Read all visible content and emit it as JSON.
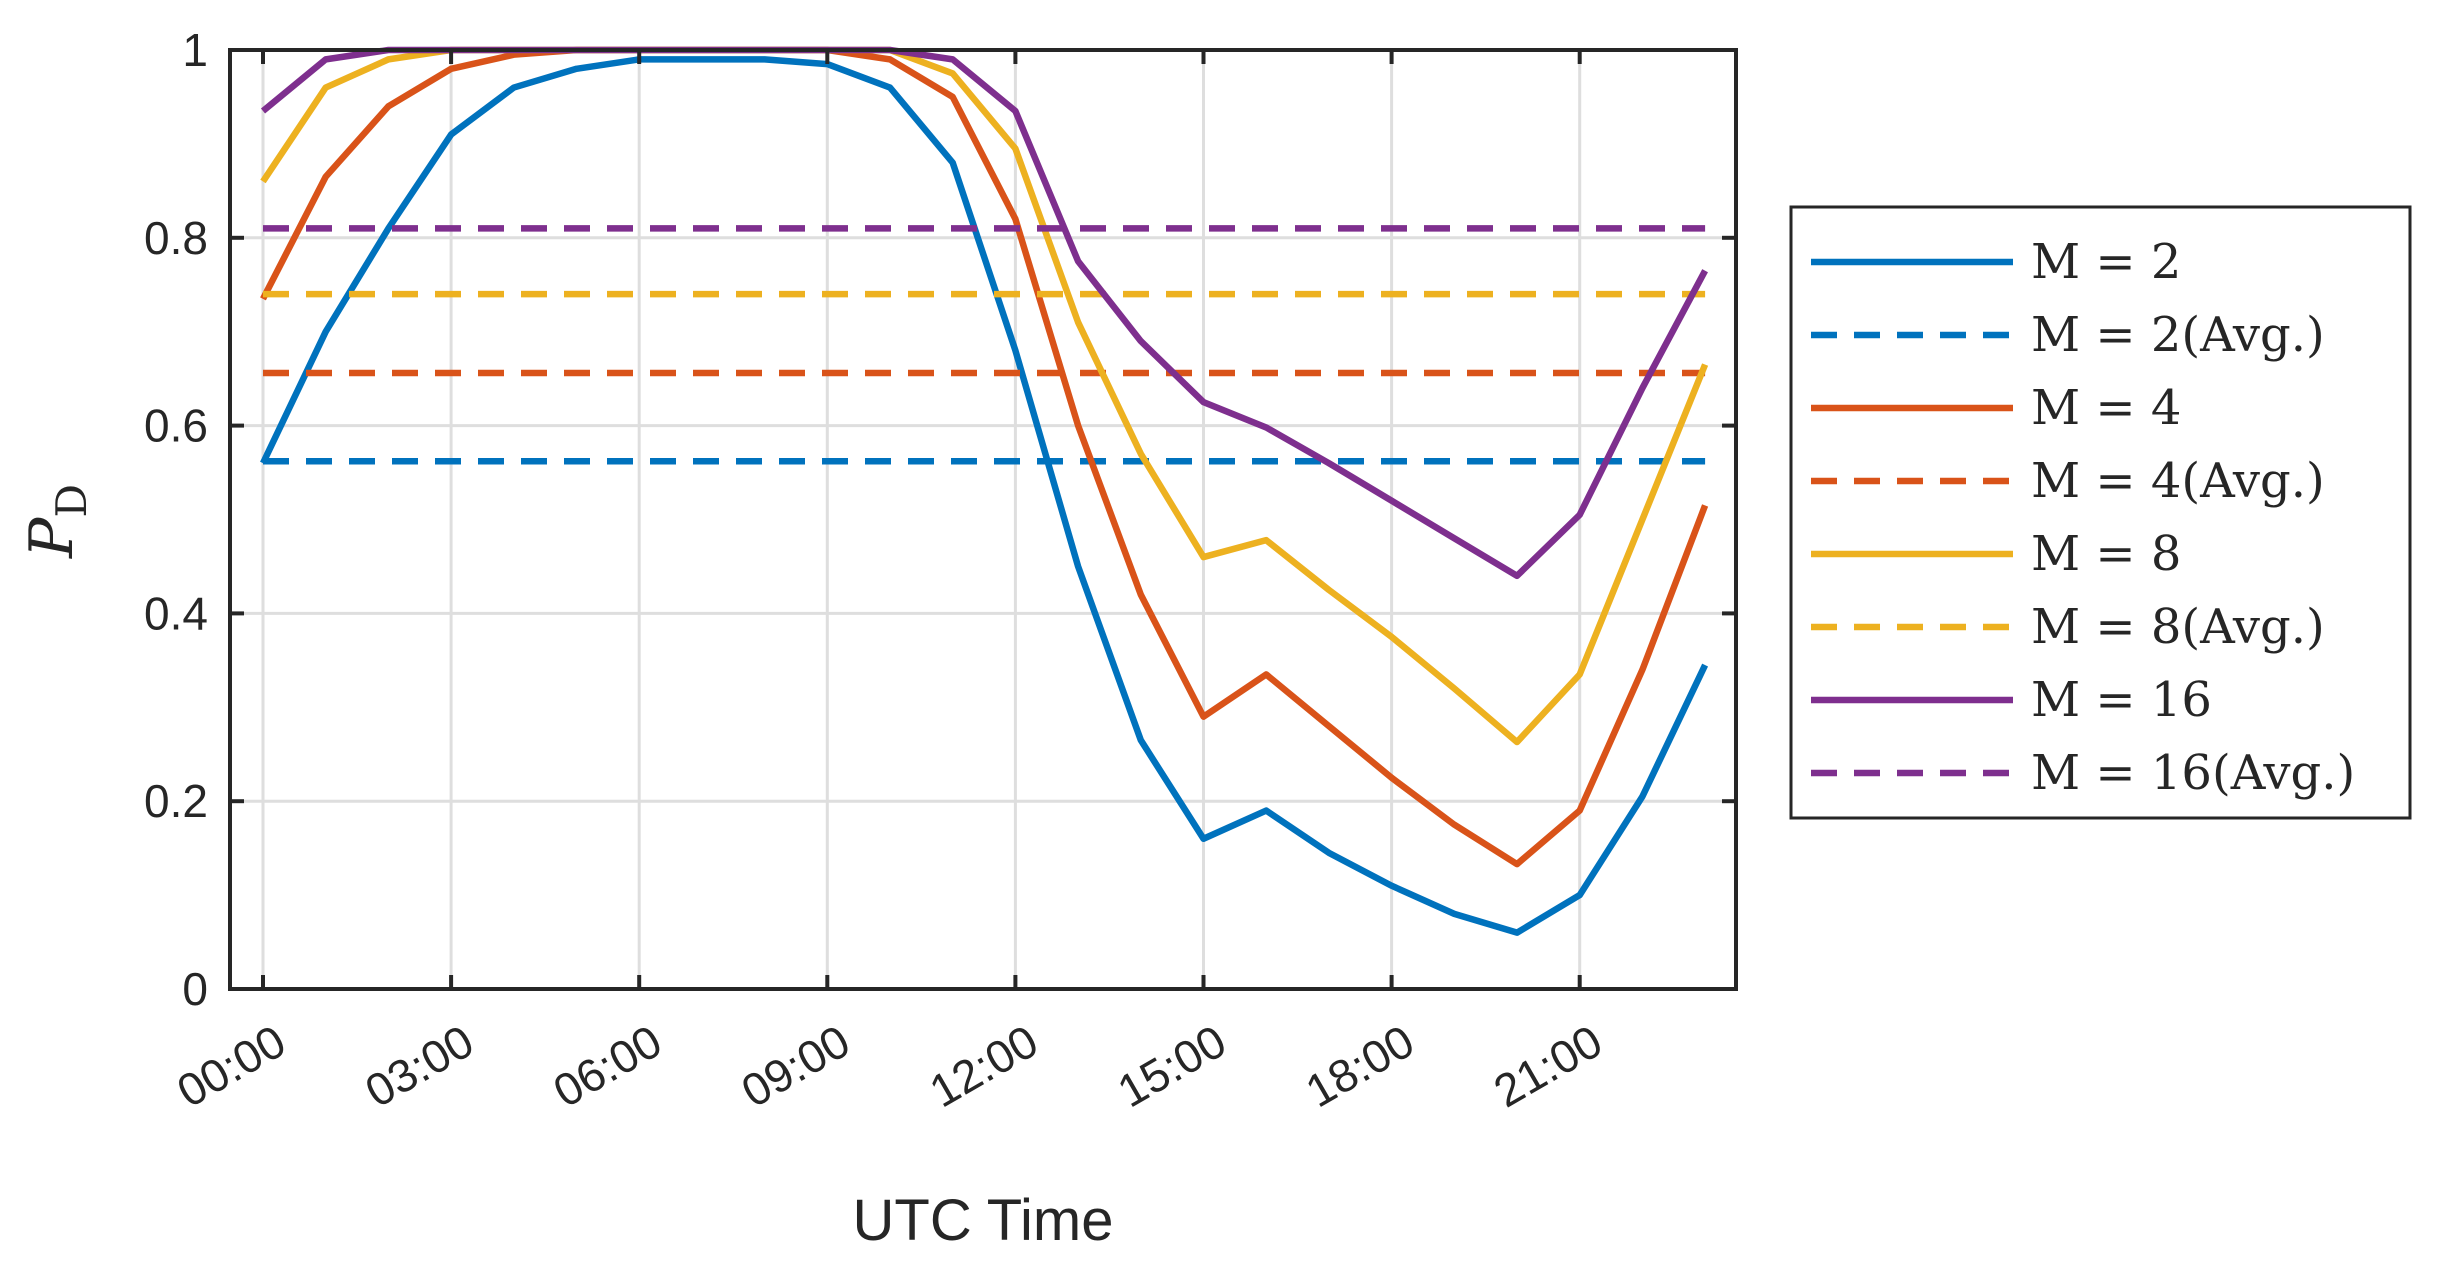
{
  "chart_data": {
    "type": "line",
    "xlabel": "UTC Time",
    "ylabel": "P",
    "ylabel_subscript": "D",
    "x_tick_labels": [
      "00:00",
      "03:00",
      "06:00",
      "09:00",
      "12:00",
      "15:00",
      "18:00",
      "21:00"
    ],
    "x_tick_hours": [
      0,
      3,
      6,
      9,
      12,
      15,
      18,
      21
    ],
    "x_hours": [
      0,
      1,
      2,
      3,
      4,
      5,
      6,
      7,
      8,
      9,
      10,
      11,
      12,
      13,
      14,
      15,
      16,
      17,
      18,
      19,
      20,
      21,
      22,
      23
    ],
    "ylim": [
      0,
      1
    ],
    "y_ticks": [
      0,
      0.2,
      0.4,
      0.6,
      0.8,
      1
    ],
    "y_tick_labels": [
      "0",
      "0.2",
      "0.4",
      "0.6",
      "0.8",
      "1"
    ],
    "grid": true,
    "legend_placement": "outside-right",
    "series": [
      {
        "name": "M = 2",
        "style": "solid",
        "color": "#0072BD",
        "values": [
          0.56,
          0.7,
          0.81,
          0.91,
          0.96,
          0.98,
          0.99,
          0.99,
          0.99,
          0.985,
          0.96,
          0.88,
          0.68,
          0.45,
          0.265,
          0.16,
          0.19,
          0.145,
          0.11,
          0.08,
          0.06,
          0.1,
          0.205,
          0.345
        ]
      },
      {
        "name": "M = 2(Avg.)",
        "style": "dashed",
        "color": "#0072BD",
        "value": 0.562
      },
      {
        "name": "M = 4",
        "style": "solid",
        "color": "#D95319",
        "values": [
          0.735,
          0.865,
          0.94,
          0.98,
          0.995,
          1.0,
          1.0,
          1.0,
          1.0,
          1.0,
          0.99,
          0.95,
          0.82,
          0.6,
          0.42,
          0.29,
          0.335,
          0.28,
          0.225,
          0.175,
          0.133,
          0.19,
          0.34,
          0.515
        ]
      },
      {
        "name": "M = 4(Avg.)",
        "style": "dashed",
        "color": "#D95319",
        "value": 0.656
      },
      {
        "name": "M = 8",
        "style": "solid",
        "color": "#EDB120",
        "values": [
          0.86,
          0.96,
          0.99,
          1.0,
          1.0,
          1.0,
          1.0,
          1.0,
          1.0,
          1.0,
          1.0,
          0.975,
          0.895,
          0.71,
          0.57,
          0.46,
          0.478,
          0.425,
          0.375,
          0.32,
          0.263,
          0.335,
          0.5,
          0.665
        ]
      },
      {
        "name": "M = 8(Avg.)",
        "style": "dashed",
        "color": "#EDB120",
        "value": 0.74
      },
      {
        "name": "M = 16",
        "style": "solid",
        "color": "#7E2F8E",
        "values": [
          0.935,
          0.99,
          1.0,
          1.0,
          1.0,
          1.0,
          1.0,
          1.0,
          1.0,
          1.0,
          1.0,
          0.99,
          0.935,
          0.775,
          0.69,
          0.625,
          0.598,
          0.56,
          0.52,
          0.48,
          0.44,
          0.505,
          0.64,
          0.765
        ]
      },
      {
        "name": "M = 16(Avg.)",
        "style": "dashed",
        "color": "#7E2F8E",
        "value": 0.81
      }
    ]
  }
}
